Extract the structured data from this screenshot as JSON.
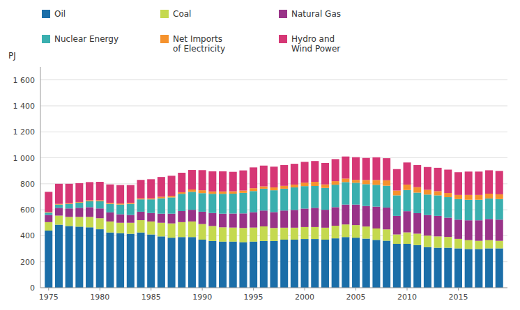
{
  "chart_data": {
    "type": "bar",
    "stacked": true,
    "y_label": "PJ",
    "x": [
      1975,
      1976,
      1977,
      1978,
      1979,
      1980,
      1981,
      1982,
      1983,
      1984,
      1985,
      1986,
      1987,
      1988,
      1989,
      1990,
      1991,
      1992,
      1993,
      1994,
      1995,
      1996,
      1997,
      1998,
      1999,
      2000,
      2001,
      2002,
      2003,
      2004,
      2005,
      2006,
      2007,
      2008,
      2009,
      2010,
      2011,
      2012,
      2013,
      2014,
      2015,
      2016,
      2017,
      2018,
      2019
    ],
    "series": [
      {
        "name": "Oil",
        "color": "#1b6ea8",
        "values": [
          440,
          485,
          475,
          470,
          465,
          450,
          425,
          420,
          415,
          425,
          410,
          395,
          385,
          390,
          390,
          370,
          360,
          355,
          355,
          350,
          355,
          360,
          360,
          370,
          370,
          375,
          375,
          370,
          380,
          390,
          385,
          378,
          368,
          362,
          338,
          338,
          328,
          313,
          308,
          308,
          303,
          298,
          298,
          303,
          303
        ]
      },
      {
        "name": "Coal",
        "color": "#c5d94f",
        "values": [
          65,
          70,
          70,
          75,
          80,
          85,
          85,
          80,
          85,
          95,
          100,
          105,
          110,
          115,
          120,
          120,
          115,
          110,
          108,
          110,
          108,
          112,
          100,
          92,
          92,
          92,
          92,
          92,
          97,
          97,
          97,
          93,
          88,
          87,
          72,
          88,
          88,
          88,
          87,
          83,
          73,
          68,
          63,
          63,
          58
        ]
      },
      {
        "name": "Natural Gas",
        "color": "#993388",
        "values": [
          55,
          60,
          65,
          70,
          75,
          75,
          70,
          65,
          60,
          65,
          65,
          70,
          75,
          85,
          90,
          95,
          100,
          105,
          108,
          112,
          118,
          122,
          122,
          132,
          137,
          142,
          148,
          138,
          143,
          153,
          158,
          158,
          168,
          168,
          143,
          163,
          158,
          158,
          158,
          148,
          148,
          153,
          158,
          163,
          163
        ]
      },
      {
        "name": "Nuclear Energy",
        "color": "#3aafaf",
        "values": [
          18,
          25,
          35,
          40,
          45,
          55,
          65,
          75,
          85,
          95,
          105,
          118,
          125,
          133,
          138,
          143,
          148,
          153,
          153,
          158,
          163,
          168,
          168,
          168,
          173,
          173,
          168,
          168,
          173,
          173,
          168,
          168,
          168,
          168,
          158,
          163,
          158,
          158,
          158,
          158,
          158,
          158,
          158,
          158,
          158
        ]
      },
      {
        "name": "Net Imports\nof Electricity",
        "color": "#f5922d",
        "values": [
          5,
          5,
          5,
          5,
          8,
          8,
          8,
          8,
          8,
          8,
          8,
          12,
          12,
          12,
          18,
          22,
          18,
          18,
          18,
          18,
          22,
          18,
          22,
          22,
          22,
          27,
          32,
          27,
          27,
          27,
          22,
          32,
          37,
          42,
          37,
          42,
          42,
          37,
          32,
          32,
          32,
          37,
          37,
          37,
          37
        ]
      },
      {
        "name": "Hydro and\nWind Power",
        "color": "#d63775",
        "values": [
          155,
          155,
          150,
          145,
          140,
          142,
          142,
          142,
          137,
          142,
          147,
          152,
          155,
          150,
          150,
          155,
          155,
          155,
          150,
          155,
          160,
          160,
          160,
          160,
          160,
          160,
          160,
          165,
          170,
          170,
          175,
          170,
          175,
          170,
          165,
          170,
          170,
          175,
          180,
          180,
          175,
          180,
          180,
          180,
          180
        ]
      }
    ],
    "xlim": [
      1974.2,
      2019.8
    ],
    "xticks": [
      1975,
      1980,
      1985,
      1990,
      1995,
      2000,
      2005,
      2010,
      2015
    ],
    "ylim": [
      0,
      1700
    ],
    "yticks": [
      0,
      200,
      400,
      600,
      800,
      {
        "value": 1000,
        "label": "1 000"
      },
      {
        "value": 1200,
        "label": "1 200"
      },
      {
        "value": 1400,
        "label": "1 400"
      },
      {
        "value": 1600,
        "label": "1 600"
      }
    ],
    "grid": true,
    "legend": "top"
  }
}
